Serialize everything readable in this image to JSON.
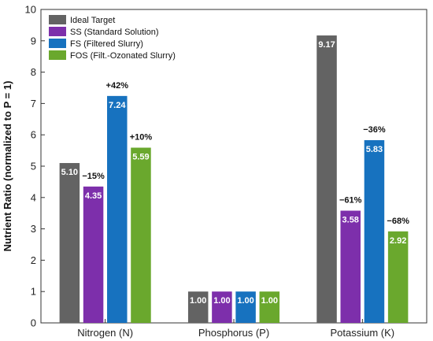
{
  "chart_data": {
    "type": "bar",
    "ylabel": "Nutrient Ratio (normalized to P = 1)",
    "ylim": [
      0,
      10
    ],
    "yticks": [
      "0",
      "1",
      "2",
      "3",
      "4",
      "5",
      "6",
      "7",
      "8",
      "9",
      "10"
    ],
    "categories": [
      "Nitrogen (N)",
      "Phosphorus (P)",
      "Potassium (K)"
    ],
    "legend_position": "top-left",
    "series": [
      {
        "name": "Ideal Target",
        "color": "#636363",
        "values": [
          5.1,
          1.0,
          9.17
        ],
        "labels": [
          "5.10",
          "1.00",
          "9.17"
        ],
        "annotations": [
          "",
          "",
          ""
        ]
      },
      {
        "name": "SS (Standard Solution)",
        "color": "#7d2fab",
        "values": [
          4.35,
          1.0,
          3.58
        ],
        "labels": [
          "4.35",
          "1.00",
          "3.58"
        ],
        "annotations": [
          "−15%",
          "",
          "−61%"
        ]
      },
      {
        "name": "FS (Filtered Slurry)",
        "color": "#1772bf",
        "values": [
          7.24,
          1.0,
          5.83
        ],
        "labels": [
          "7.24",
          "1.00",
          "5.83"
        ],
        "annotations": [
          "+42%",
          "",
          "−36%"
        ]
      },
      {
        "name": "FOS (Filt.-Ozonated Slurry)",
        "color": "#6aa82d",
        "values": [
          5.59,
          1.0,
          2.92
        ],
        "labels": [
          "5.59",
          "1.00",
          "2.92"
        ],
        "annotations": [
          "+10%",
          "",
          "−68%"
        ]
      }
    ]
  }
}
